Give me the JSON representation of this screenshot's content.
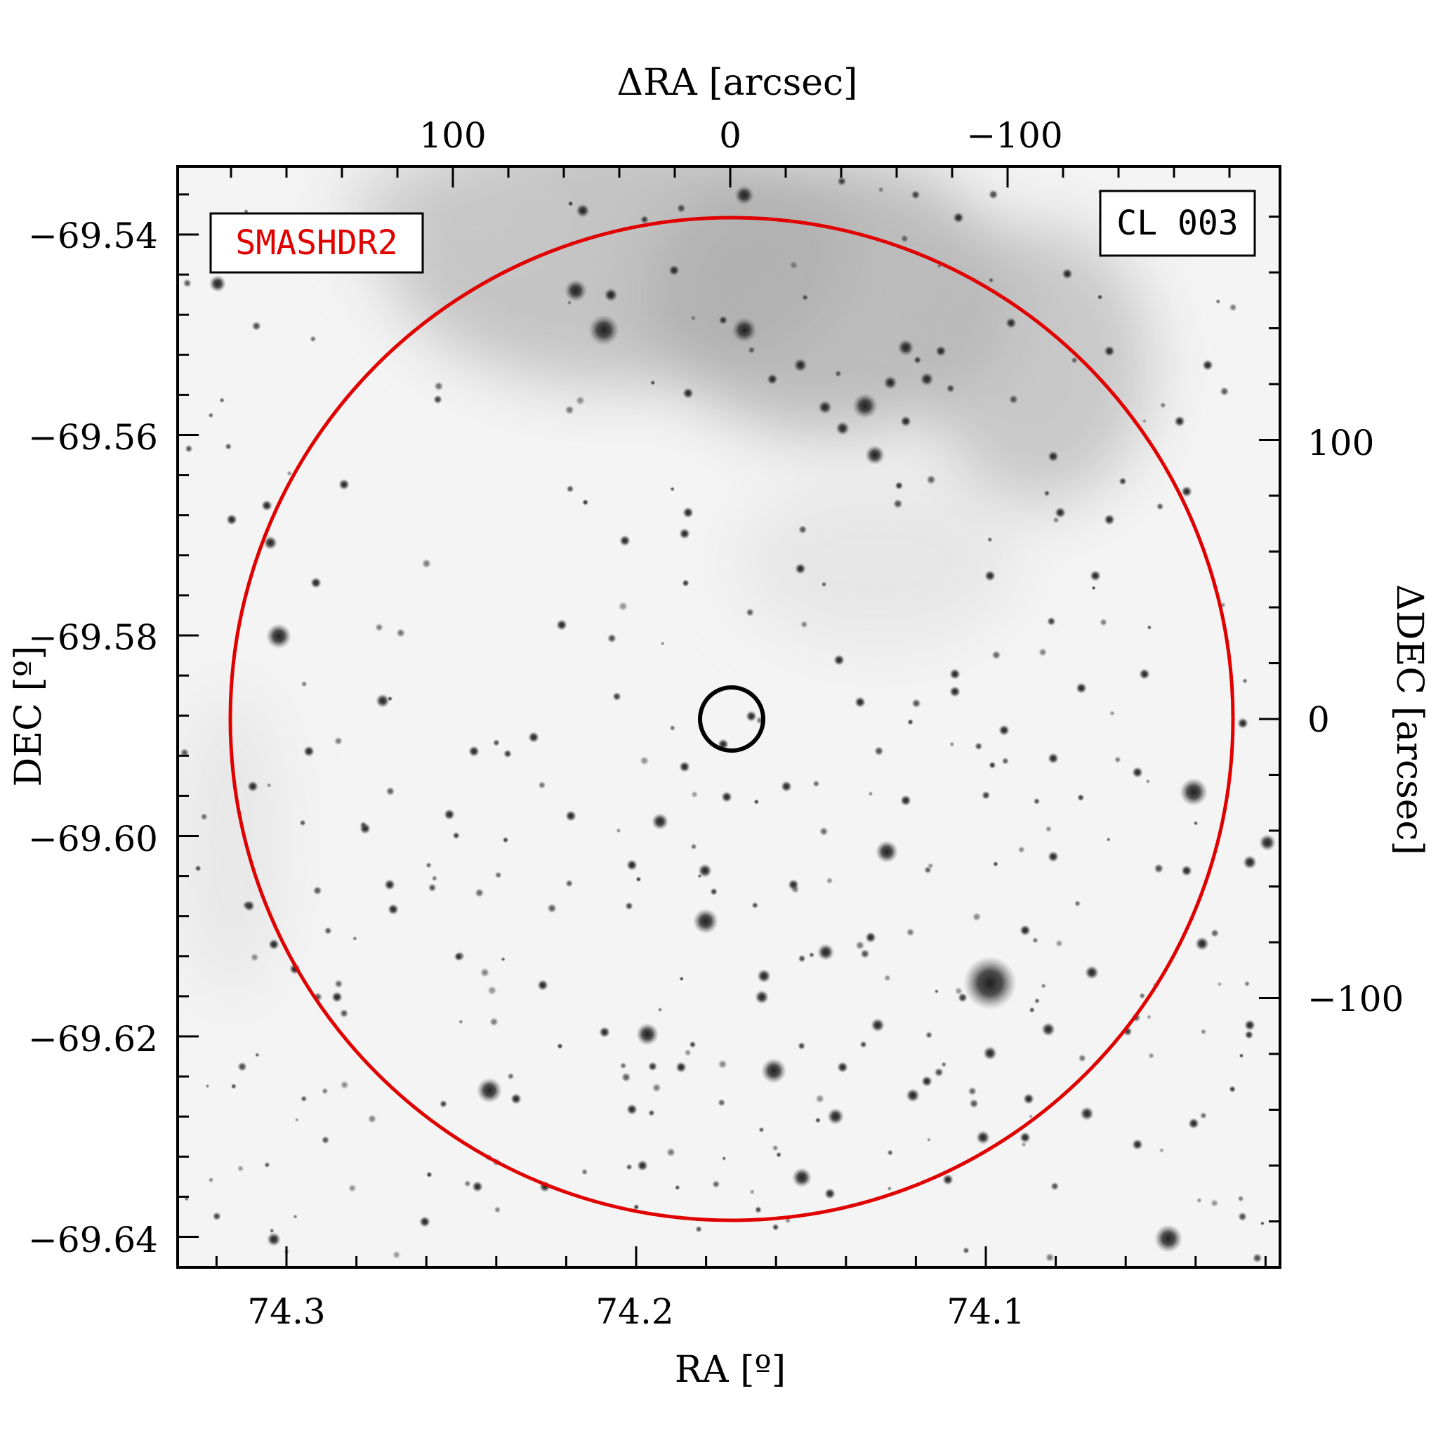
{
  "labels": {
    "survey": "SMASHDR2",
    "cluster": "CL 003",
    "top_axis": "ΔRA [arcsec]",
    "right_axis": "ΔDEC [arcsec]",
    "bottom_axis": "RA [º]",
    "left_axis": "DEC [º]"
  },
  "axes": {
    "ra_ticks": [
      "74.3",
      "74.2",
      "74.1"
    ],
    "dec_ticks": [
      "−69.54",
      "−69.56",
      "−69.58",
      "−69.60",
      "−69.62",
      "−69.64"
    ],
    "dra_ticks": [
      "100",
      "0",
      "−100"
    ],
    "ddec_ticks": [
      "100",
      "0",
      "−100"
    ]
  },
  "colors": {
    "large_circle": "#e00000",
    "small_circle": "#000000",
    "survey_label": "#e00000",
    "background_sky": "#f2f2f2"
  }
}
